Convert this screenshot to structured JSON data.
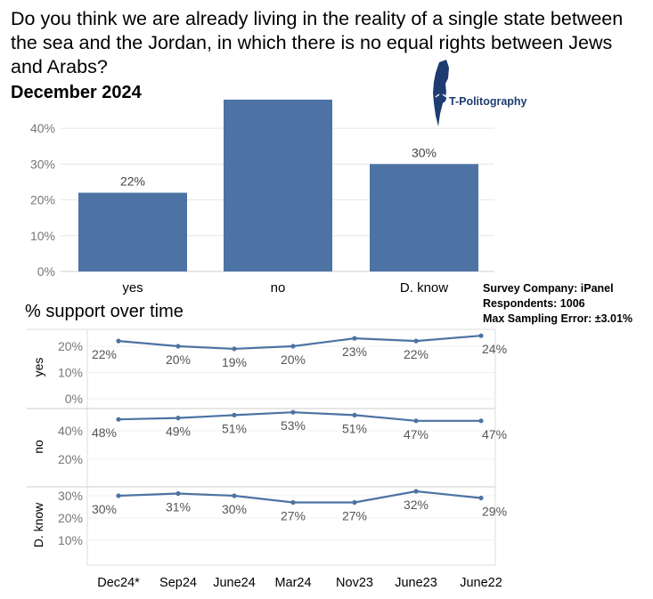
{
  "header": {
    "question": "Do you think we are already living in the reality of a single state between the sea and the Jordan, in which there is no equal rights between Jews and Arabs?",
    "date": "December 2024"
  },
  "logo": {
    "text": "T-Politography"
  },
  "survey": {
    "company": "Survey Company: iPanel",
    "respondents": "Respondents: 1006",
    "error": "Max Sampling Error: ±3.01%"
  },
  "trend_title": "% support over time",
  "colors": {
    "bar": "#4c73a3",
    "line": "#4c73a3",
    "grid": "#e6e6e6",
    "text": "#555555",
    "logo": "#1f3c70"
  },
  "chart_data": [
    {
      "type": "bar",
      "categories": [
        "yes",
        "no",
        "D. know"
      ],
      "values": [
        22,
        48,
        30
      ],
      "data_labels": [
        "22%",
        "",
        "30%"
      ],
      "y_ticks": [
        "0%",
        "10%",
        "20%",
        "30%",
        "40%"
      ],
      "ylim": [
        0,
        46
      ],
      "grid": true
    },
    {
      "type": "line",
      "title": "% support over time",
      "categories": [
        "Dec24*",
        "Sep24",
        "June24",
        "Mar24",
        "Nov23",
        "June23",
        "June22"
      ],
      "panels": [
        {
          "label": "yes",
          "values": [
            22,
            20,
            19,
            20,
            23,
            22,
            24
          ],
          "y_ticks": [
            "0%",
            "10%",
            "20%"
          ],
          "ylim": [
            0,
            25
          ]
        },
        {
          "label": "no",
          "values": [
            48,
            49,
            51,
            53,
            51,
            47,
            47
          ],
          "y_ticks": [
            "20%",
            "40%"
          ],
          "ylim": [
            10,
            55
          ]
        },
        {
          "label": "D. know",
          "values": [
            30,
            31,
            30,
            27,
            27,
            32,
            29
          ],
          "y_ticks": [
            "10%",
            "20%",
            "30%"
          ],
          "ylim": [
            0,
            33
          ]
        }
      ]
    }
  ]
}
